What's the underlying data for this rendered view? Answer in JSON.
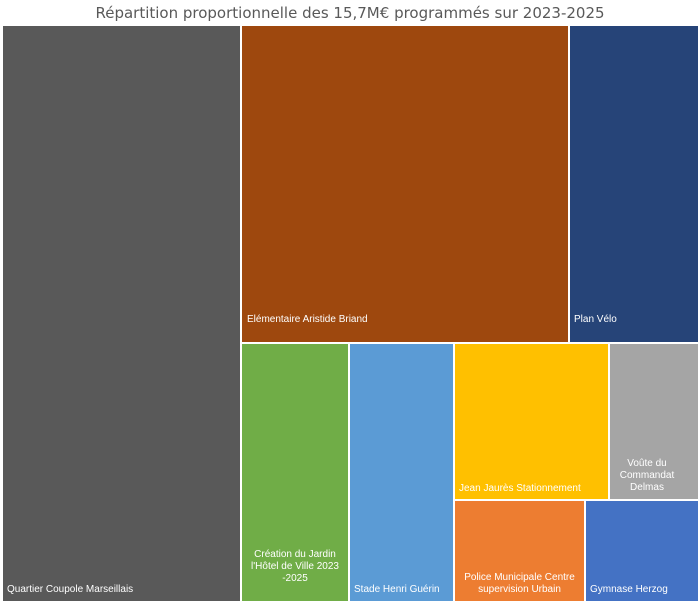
{
  "chart_data": {
    "type": "treemap",
    "title": "Répartition proportionnelle des 15,7M€ programmés sur 2023-2025",
    "items": [
      {
        "name": "Quartier Coupole Marseillais",
        "value": 5.12,
        "color": "#595959"
      },
      {
        "name": "Elémentaire Aristide Briand",
        "value": 3.09,
        "color": "#9e480e"
      },
      {
        "name": "Plan Vélo",
        "value": 1.26,
        "color": "#264478"
      },
      {
        "name": "Création du Jardin l'Hôtel de Ville 2023 -2025",
        "value": 1.07,
        "color": "#70ad47"
      },
      {
        "name": "Stade Henri Guérin",
        "value": 1.03,
        "color": "#5b9bd5"
      },
      {
        "name": "Jean Jaurès Stationnement",
        "value": 1.18,
        "color": "#ffc000"
      },
      {
        "name": "Voûte du Commandat Delmas",
        "value": 0.67,
        "color": "#a5a5a5"
      },
      {
        "name": "Police Municipale  Centre supervision Urbain",
        "value": 0.76,
        "color": "#ed7d31"
      },
      {
        "name": "Gymnase Herzog",
        "value": 0.68,
        "color": "#4472c4"
      }
    ]
  }
}
